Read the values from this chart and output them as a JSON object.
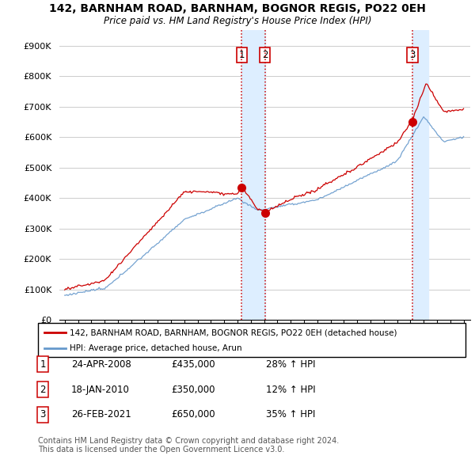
{
  "title": "142, BARNHAM ROAD, BARNHAM, BOGNOR REGIS, PO22 0EH",
  "subtitle": "Price paid vs. HM Land Registry's House Price Index (HPI)",
  "legend_line1": "142, BARNHAM ROAD, BARNHAM, BOGNOR REGIS, PO22 0EH (detached house)",
  "legend_line2": "HPI: Average price, detached house, Arun",
  "footer1": "Contains HM Land Registry data © Crown copyright and database right 2024.",
  "footer2": "This data is licensed under the Open Government Licence v3.0.",
  "transactions": [
    {
      "num": 1,
      "date": "24-APR-2008",
      "price": "£435,000",
      "hpi": "28% ↑ HPI"
    },
    {
      "num": 2,
      "date": "18-JAN-2010",
      "price": "£350,000",
      "hpi": "12% ↑ HPI"
    },
    {
      "num": 3,
      "date": "26-FEB-2021",
      "price": "£650,000",
      "hpi": "35% ↑ HPI"
    }
  ],
  "transaction_dates_num": [
    2008.31,
    2010.05,
    2021.16
  ],
  "transaction_prices": [
    435000,
    350000,
    650000
  ],
  "ylim": [
    0,
    950000
  ],
  "yticks": [
    0,
    100000,
    200000,
    300000,
    400000,
    500000,
    600000,
    700000,
    800000,
    900000
  ],
  "red_color": "#cc0000",
  "blue_color": "#6699cc",
  "shade_color": "#ddeeff",
  "background_color": "#ffffff"
}
